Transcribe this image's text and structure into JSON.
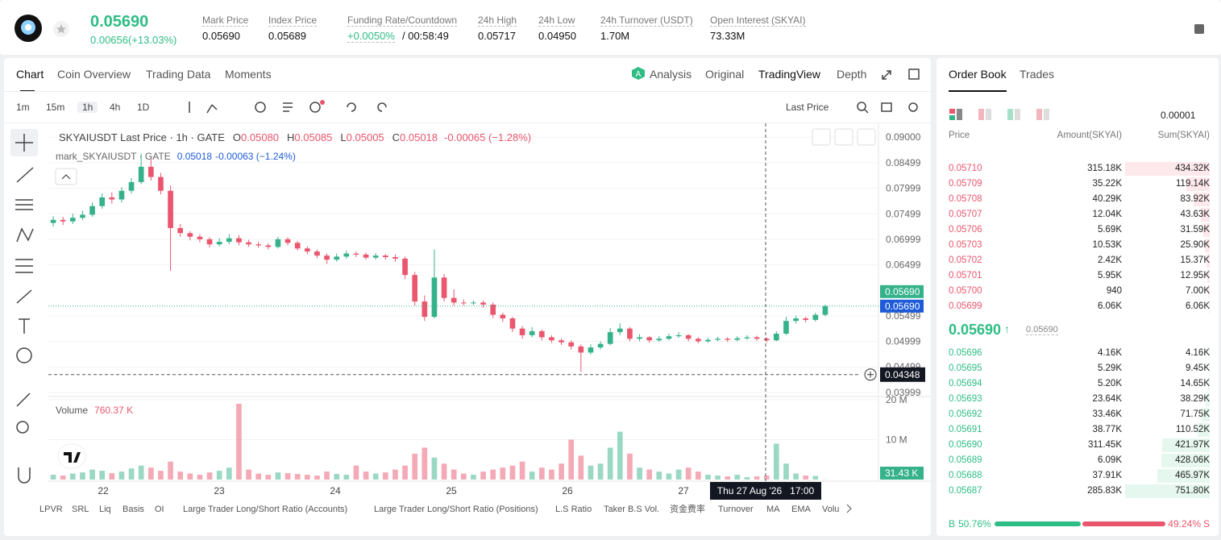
{
  "header": {
    "price": "0.05690",
    "change": "0.00656(+13.03%)",
    "stats": [
      {
        "label": "Mark Price",
        "value": "0.05690"
      },
      {
        "label": "Index Price",
        "value": "0.05689"
      },
      {
        "label": "Funding Rate/Countdown",
        "value": "+0.0050%",
        "countdown": "/ 00:58:49"
      },
      {
        "label": "24h High",
        "value": "0.05717"
      },
      {
        "label": "24h Low",
        "value": "0.04950"
      },
      {
        "label": "24h Turnover (USDT)",
        "value": "1.70M"
      },
      {
        "label": "Open Interest (SKYAI)",
        "value": "73.33M"
      }
    ]
  },
  "tabs": [
    "Chart",
    "Coin Overview",
    "Trading Data",
    "Moments"
  ],
  "views": [
    "Analysis",
    "Original",
    "TradingView",
    "Depth"
  ],
  "intervals": [
    "1m",
    "15m",
    "1h",
    "4h",
    "1D"
  ],
  "price_source": "Last Price",
  "indicators": [
    "LPVR",
    "SRL",
    "Liq",
    "Basis",
    "OI",
    "Large Trader Long/Short Ratio (Accounts)",
    "Large Trader Long/Short Ratio (Positions)",
    "L.S Ratio",
    "Taker B.S Vol.",
    "资金费率",
    "Turnover",
    "MA",
    "EMA",
    "Volu"
  ],
  "chart_data": {
    "type": "candlestick",
    "title": "SKYAIUSDT Last Price · 1h · GATE",
    "ohlc_labels": [
      {
        "key": "O",
        "value": "0.05080"
      },
      {
        "key": "H",
        "value": "0.05085"
      },
      {
        "key": "L",
        "value": "0.05005"
      },
      {
        "key": "C",
        "value": "0.05018"
      }
    ],
    "change": "-0.00065 (−1.28%)",
    "mark_line": "mark_SKYAIUSDT · GATE",
    "mark_price": "0.05018",
    "mark_change": "-0.00063 (−1.24%)",
    "up_color": "#35b28a",
    "down_color": "#e9566e",
    "candles": [
      [
        0.0732,
        0.0745,
        0.0725,
        0.0738
      ],
      [
        0.0738,
        0.0744,
        0.0728,
        0.0735
      ],
      [
        0.0735,
        0.075,
        0.073,
        0.0742
      ],
      [
        0.0742,
        0.0756,
        0.0738,
        0.0748
      ],
      [
        0.0748,
        0.0772,
        0.0744,
        0.0765
      ],
      [
        0.0765,
        0.079,
        0.076,
        0.0782
      ],
      [
        0.0782,
        0.0792,
        0.077,
        0.0778
      ],
      [
        0.0778,
        0.0802,
        0.0772,
        0.0795
      ],
      [
        0.0795,
        0.082,
        0.079,
        0.0812
      ],
      [
        0.0812,
        0.0868,
        0.0808,
        0.0842
      ],
      [
        0.0842,
        0.0858,
        0.0815,
        0.0822
      ],
      [
        0.0822,
        0.083,
        0.0788,
        0.0795
      ],
      [
        0.0795,
        0.0805,
        0.0638,
        0.0722
      ],
      [
        0.0722,
        0.073,
        0.0705,
        0.0712
      ],
      [
        0.0712,
        0.0716,
        0.0698,
        0.0705
      ],
      [
        0.0705,
        0.071,
        0.0694,
        0.07
      ],
      [
        0.07,
        0.0704,
        0.0684,
        0.069
      ],
      [
        0.069,
        0.0702,
        0.0686,
        0.0695
      ],
      [
        0.0695,
        0.071,
        0.069,
        0.0702
      ],
      [
        0.0702,
        0.0708,
        0.0688,
        0.0694
      ],
      [
        0.0694,
        0.0699,
        0.0685,
        0.069
      ],
      [
        0.069,
        0.0695,
        0.0683,
        0.0688
      ],
      [
        0.0688,
        0.0692,
        0.068,
        0.0685
      ],
      [
        0.0685,
        0.0705,
        0.0682,
        0.07
      ],
      [
        0.07,
        0.0704,
        0.0688,
        0.0693
      ],
      [
        0.0693,
        0.0697,
        0.0678,
        0.0682
      ],
      [
        0.0682,
        0.0686,
        0.0671,
        0.0676
      ],
      [
        0.0676,
        0.068,
        0.0663,
        0.0668
      ],
      [
        0.0668,
        0.0672,
        0.0652,
        0.066
      ],
      [
        0.066,
        0.0672,
        0.0656,
        0.0666
      ],
      [
        0.0666,
        0.0678,
        0.0662,
        0.0672
      ],
      [
        0.0672,
        0.0676,
        0.0665,
        0.067
      ],
      [
        0.067,
        0.0674,
        0.066,
        0.0664
      ],
      [
        0.0664,
        0.0673,
        0.066,
        0.0668
      ],
      [
        0.0668,
        0.0671,
        0.066,
        0.0665
      ],
      [
        0.0665,
        0.067,
        0.0656,
        0.0662
      ],
      [
        0.0662,
        0.0666,
        0.0622,
        0.063
      ],
      [
        0.063,
        0.0636,
        0.057,
        0.0578
      ],
      [
        0.0578,
        0.059,
        0.054,
        0.0548
      ],
      [
        0.0548,
        0.068,
        0.0545,
        0.0625
      ],
      [
        0.0625,
        0.0632,
        0.0578,
        0.0585
      ],
      [
        0.0585,
        0.0602,
        0.057,
        0.0576
      ],
      [
        0.0576,
        0.0582,
        0.057,
        0.0575
      ],
      [
        0.0575,
        0.058,
        0.0571,
        0.0576
      ],
      [
        0.0576,
        0.058,
        0.0566,
        0.0572
      ],
      [
        0.0572,
        0.0576,
        0.0546,
        0.0552
      ],
      [
        0.0552,
        0.0556,
        0.0538,
        0.0545
      ],
      [
        0.0545,
        0.0548,
        0.0518,
        0.0525
      ],
      [
        0.0525,
        0.053,
        0.0505,
        0.0512
      ],
      [
        0.0512,
        0.0528,
        0.0508,
        0.052
      ],
      [
        0.052,
        0.0523,
        0.0502,
        0.0508
      ],
      [
        0.0508,
        0.0512,
        0.0497,
        0.0502
      ],
      [
        0.0502,
        0.0506,
        0.0493,
        0.0498
      ],
      [
        0.0498,
        0.0502,
        0.0484,
        0.049
      ],
      [
        0.049,
        0.0494,
        0.044,
        0.0478
      ],
      [
        0.0478,
        0.0494,
        0.0474,
        0.0488
      ],
      [
        0.0488,
        0.05,
        0.0484,
        0.0495
      ],
      [
        0.0495,
        0.0526,
        0.0492,
        0.0518
      ],
      [
        0.0518,
        0.0535,
        0.0512,
        0.0525
      ],
      [
        0.0525,
        0.0528,
        0.05,
        0.0505
      ],
      [
        0.0505,
        0.0514,
        0.05,
        0.0508
      ],
      [
        0.0508,
        0.051,
        0.0497,
        0.0502
      ],
      [
        0.0502,
        0.051,
        0.0499,
        0.0505
      ],
      [
        0.0505,
        0.0515,
        0.0502,
        0.051
      ],
      [
        0.051,
        0.0518,
        0.0507,
        0.0512
      ],
      [
        0.0512,
        0.0514,
        0.05,
        0.0505
      ],
      [
        0.0505,
        0.0508,
        0.0496,
        0.05
      ],
      [
        0.05,
        0.0507,
        0.0497,
        0.0503
      ],
      [
        0.0503,
        0.0509,
        0.05,
        0.0505
      ],
      [
        0.0505,
        0.0508,
        0.0499,
        0.0503
      ],
      [
        0.0503,
        0.051,
        0.05,
        0.0506
      ],
      [
        0.0506,
        0.0512,
        0.0503,
        0.0508
      ],
      [
        0.0508,
        0.0511,
        0.0501,
        0.0505
      ],
      [
        0.0505,
        0.0508,
        0.0498,
        0.0502
      ],
      [
        0.0502,
        0.052,
        0.05,
        0.0515
      ],
      [
        0.0515,
        0.0548,
        0.0512,
        0.054
      ],
      [
        0.054,
        0.055,
        0.0535,
        0.0545
      ],
      [
        0.0545,
        0.0548,
        0.0537,
        0.0542
      ],
      [
        0.0542,
        0.0556,
        0.0539,
        0.0552
      ],
      [
        0.0552,
        0.0572,
        0.0549,
        0.0569
      ]
    ],
    "ylim": [
      0.0395,
      0.0924
    ],
    "yticks": [
      {
        "value": 0.09,
        "label": "0.09000"
      },
      0.08499,
      0.07999,
      0.07499,
      0.06999,
      0.06499,
      0.05499,
      0.04999,
      0.04499,
      0.03999
    ],
    "last_price_labels": [
      "0.05690",
      "0.05690"
    ],
    "crosshair_price": 0.04348,
    "crosshair_label": "Thu 27 Aug '26   17:00",
    "xtick_labels": [
      "22",
      "23",
      "24",
      "25",
      "26",
      "27"
    ],
    "volume": {
      "title": "Volume",
      "value": "760.37 K",
      "last": "31.43 K",
      "values": [
        1.2,
        1.0,
        1.5,
        1.8,
        2.5,
        2.2,
        1.6,
        2.0,
        2.8,
        3.5,
        3.0,
        2.2,
        4.5,
        2.0,
        1.5,
        1.2,
        1.8,
        2.2,
        3.0,
        19,
        2.5,
        1.5,
        1.2,
        1.8,
        1.6,
        1.4,
        1.2,
        1.0,
        2.0,
        1.4,
        1.2,
        3.5,
        2.0,
        1.5,
        1.8,
        2.5,
        3.5,
        6.5,
        8.0,
        5.5,
        4.0,
        2.5,
        1.5,
        1.2,
        2.0,
        2.5,
        3.0,
        3.5,
        4.5,
        2.0,
        3.0,
        2.5,
        4.0,
        10.0,
        6.0,
        3.5,
        4.0,
        8.0,
        12.0,
        6.5,
        3.0,
        2.5,
        2.0,
        1.5,
        2.5,
        3.0,
        2.0,
        1.2,
        1.0,
        0.8,
        1.2,
        0.6,
        0.8,
        1.0,
        9.0,
        4.0,
        1.5,
        1.0,
        0.9,
        0.03143
      ],
      "ylim": [
        0,
        20.2
      ],
      "yticks": [
        {
          "value": 20,
          "label": "20 M"
        },
        {
          "value": 10,
          "label": "10 M"
        }
      ]
    }
  },
  "order_book": {
    "tabs": [
      "Order Book",
      "Trades"
    ],
    "precision": "0.00001",
    "columns": [
      "Price",
      "Amount(SKYAI)",
      "Sum(SKYAI)"
    ],
    "asks": [
      {
        "price": "0.05710",
        "amount": "315.18K",
        "sum": "434.32K"
      },
      {
        "price": "0.05709",
        "amount": "35.22K",
        "sum": "119.14K"
      },
      {
        "price": "0.05708",
        "amount": "40.29K",
        "sum": "83.92K"
      },
      {
        "price": "0.05707",
        "amount": "12.04K",
        "sum": "43.63K"
      },
      {
        "price": "0.05706",
        "amount": "5.69K",
        "sum": "31.59K"
      },
      {
        "price": "0.05703",
        "amount": "10.53K",
        "sum": "25.90K"
      },
      {
        "price": "0.05702",
        "amount": "2.42K",
        "sum": "15.37K"
      },
      {
        "price": "0.05701",
        "amount": "5.95K",
        "sum": "12.95K"
      },
      {
        "price": "0.05700",
        "amount": "940",
        "sum": "7.00K"
      },
      {
        "price": "0.05699",
        "amount": "6.06K",
        "sum": "6.06K"
      }
    ],
    "mid": {
      "price": "0.05690",
      "mark": "0.05690"
    },
    "bids": [
      {
        "price": "0.05696",
        "amount": "4.16K",
        "sum": "4.16K"
      },
      {
        "price": "0.05695",
        "amount": "5.29K",
        "sum": "9.45K"
      },
      {
        "price": "0.05694",
        "amount": "5.20K",
        "sum": "14.65K"
      },
      {
        "price": "0.05693",
        "amount": "23.64K",
        "sum": "38.29K"
      },
      {
        "price": "0.05692",
        "amount": "33.46K",
        "sum": "71.75K"
      },
      {
        "price": "0.05691",
        "amount": "38.77K",
        "sum": "110.52K"
      },
      {
        "price": "0.05690",
        "amount": "311.45K",
        "sum": "421.97K"
      },
      {
        "price": "0.05689",
        "amount": "6.09K",
        "sum": "428.06K"
      },
      {
        "price": "0.05688",
        "amount": "37.91K",
        "sum": "465.97K"
      },
      {
        "price": "0.05687",
        "amount": "285.83K",
        "sum": "751.80K"
      }
    ],
    "ratio": {
      "buy_letter": "B",
      "sell_letter": "S",
      "buy": 50.76,
      "sell": 49.24,
      "value_labels": [
        "50.76%",
        "49.24%"
      ]
    }
  }
}
